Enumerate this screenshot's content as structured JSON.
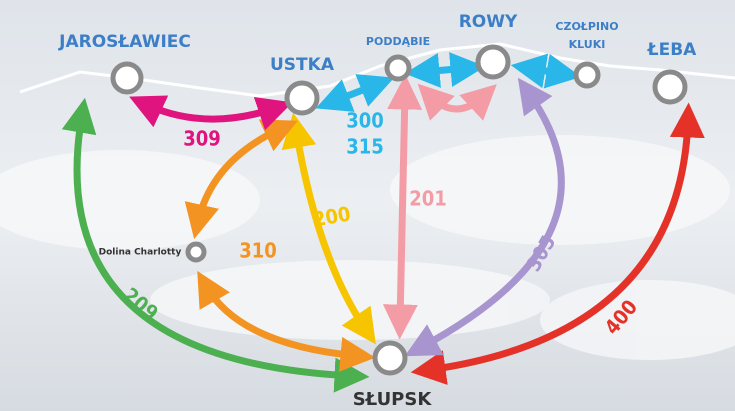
{
  "nodes": [
    {
      "label": "JAROSŁAWIEC"
    },
    {
      "label": "USTKA"
    },
    {
      "label": "PODDĄBIE"
    },
    {
      "label": "ROWY"
    },
    {
      "label": [
        "CZOŁPINO",
        "KLUKI"
      ]
    },
    {
      "label": "ŁEBA"
    },
    {
      "label": "Dolina Charlotty"
    },
    {
      "label": "SŁUPSK"
    }
  ],
  "routes": [
    {
      "number": "309"
    },
    {
      "number": "300"
    },
    {
      "number": "315"
    },
    {
      "number": "200"
    },
    {
      "number": "201"
    },
    {
      "number": "305"
    },
    {
      "number": "310"
    },
    {
      "number": "209"
    },
    {
      "number": "400"
    }
  ]
}
